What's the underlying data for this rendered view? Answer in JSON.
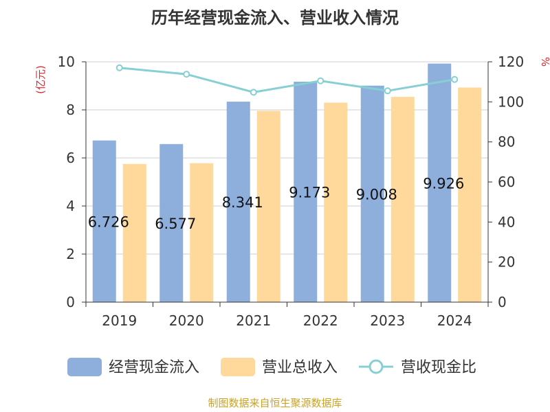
{
  "chart_data": {
    "type": "bar",
    "title": "历年经营现金流入、营业收入情况",
    "categories": [
      "2019",
      "2020",
      "2021",
      "2022",
      "2023",
      "2024"
    ],
    "series": [
      {
        "name": "经营现金流入",
        "type": "bar",
        "axis": "left",
        "color": "#8eaedb",
        "values": [
          6.726,
          6.577,
          8.341,
          9.173,
          9.008,
          9.926
        ],
        "labels": [
          "6.726",
          "6.577",
          "8.341",
          "9.173",
          "9.008",
          "9.926"
        ]
      },
      {
        "name": "营业总收入",
        "type": "bar",
        "axis": "left",
        "color": "#fed99b",
        "values": [
          5.75,
          5.78,
          7.96,
          8.3,
          8.54,
          8.93
        ]
      },
      {
        "name": "营收现金比",
        "type": "line",
        "axis": "right",
        "color": "#86d0d3",
        "values": [
          117.0,
          113.8,
          104.8,
          110.5,
          105.5,
          111.2
        ]
      }
    ],
    "y_left": {
      "label": "(亿元)",
      "min": 0,
      "max": 10,
      "ticks": [
        "0",
        "2",
        "4",
        "6",
        "8",
        "10"
      ]
    },
    "y_right": {
      "label": "%",
      "min": 0,
      "max": 120,
      "ticks": [
        "0",
        "20",
        "40",
        "60",
        "80",
        "100",
        "120"
      ]
    },
    "grid": true,
    "legend_position": "bottom"
  },
  "source": "制图数据来自恒生聚源数据库",
  "colors": {
    "axis_label_accent": "#d9272e",
    "source_text": "#c9a227",
    "title": "#333333"
  }
}
